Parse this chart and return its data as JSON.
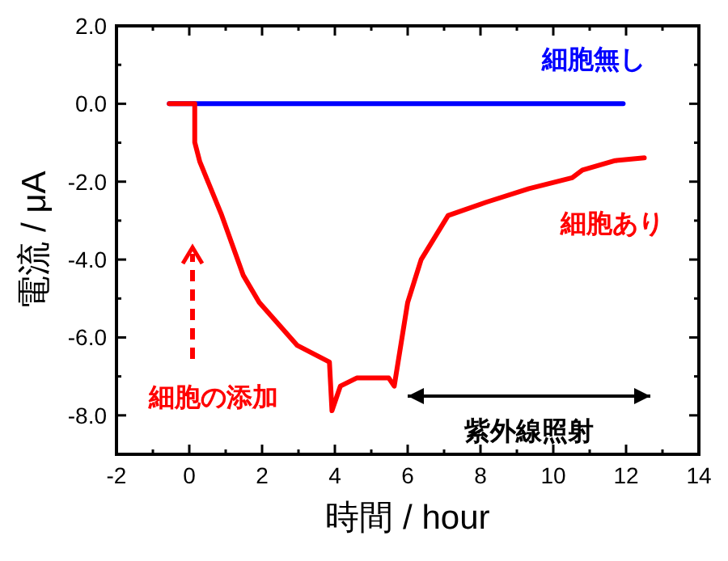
{
  "chart_data": {
    "type": "line",
    "xlabel": "時間 / hour",
    "ylabel": "電流 / μA",
    "xlim": [
      -2,
      14
    ],
    "xticks": [
      -2,
      0,
      2,
      4,
      6,
      8,
      10,
      12,
      14
    ],
    "ylim": [
      -9,
      2
    ],
    "yticks": [
      {
        "value": 2,
        "label": "2.0"
      },
      {
        "value": 0,
        "label": "0.0"
      },
      {
        "value": -2,
        "label": "-2.0"
      },
      {
        "value": -4,
        "label": "-4.0"
      },
      {
        "value": -6,
        "label": "-6.0"
      },
      {
        "value": -8,
        "label": "-8.0"
      }
    ],
    "series": [
      {
        "name": "細胞無し",
        "color": "#0000ff",
        "x": [
          -0.55,
          11.92
        ],
        "values": [
          0,
          0
        ]
      },
      {
        "name": "細胞あり",
        "color": "#ff0000",
        "x": [
          -0.55,
          0.15,
          0.15,
          0.29,
          0.89,
          1.48,
          1.92,
          2.96,
          3.85,
          3.92,
          4.15,
          4.6,
          5.48,
          5.63,
          6.0,
          6.37,
          7.11,
          8.15,
          9.33,
          10.52,
          10.8,
          11.7,
          12.5
        ],
        "values": [
          0,
          0,
          -0.99,
          -1.49,
          -2.86,
          -4.4,
          -5.1,
          -6.2,
          -6.63,
          -7.88,
          -7.25,
          -7.04,
          -7.04,
          -7.25,
          -5.1,
          -4.0,
          -2.87,
          -2.53,
          -2.18,
          -1.9,
          -1.7,
          -1.46,
          -1.39
        ]
      }
    ],
    "annotations": [
      "細胞の添加",
      "紫外線照射"
    ],
    "grid": false,
    "marker": "none",
    "line_style": "solid"
  }
}
